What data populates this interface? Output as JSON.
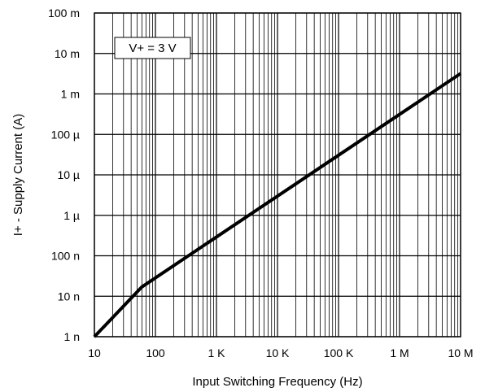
{
  "chart_data": {
    "type": "line",
    "title": "",
    "xlabel": "Input Switching Frequency (Hz)",
    "ylabel": "I+ - Supply Current (A)",
    "xscale": "log",
    "yscale": "log",
    "xlim": [
      10,
      10000000
    ],
    "ylim": [
      1e-09,
      0.1
    ],
    "grid": true,
    "x_ticks": [
      {
        "value": 10,
        "label": "10"
      },
      {
        "value": 100,
        "label": "100"
      },
      {
        "value": 1000,
        "label": "1 K"
      },
      {
        "value": 10000,
        "label": "10 K"
      },
      {
        "value": 100000,
        "label": "100 K"
      },
      {
        "value": 1000000,
        "label": "1 M"
      },
      {
        "value": 10000000,
        "label": "10 M"
      }
    ],
    "y_ticks": [
      {
        "value": 1e-09,
        "label": "1 n"
      },
      {
        "value": 1e-08,
        "label": "10 n"
      },
      {
        "value": 1e-07,
        "label": "100 n"
      },
      {
        "value": 1e-06,
        "label": "1 µ"
      },
      {
        "value": 1e-05,
        "label": "10 µ"
      },
      {
        "value": 0.0001,
        "label": "100 µ"
      },
      {
        "value": 0.001,
        "label": "1 m"
      },
      {
        "value": 0.01,
        "label": "10 m"
      },
      {
        "value": 0.1,
        "label": "100 m"
      }
    ],
    "series": [
      {
        "color": "#000000",
        "points": [
          {
            "x": 10,
            "y": 1e-09
          },
          {
            "x": 60,
            "y": 1.7e-08
          },
          {
            "x": 10000000,
            "y": 0.0032
          }
        ]
      }
    ],
    "annotation": "V+ = 3 V"
  }
}
